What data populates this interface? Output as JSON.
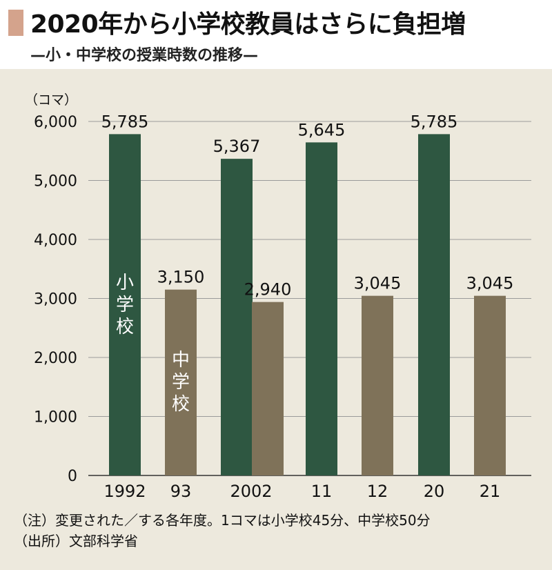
{
  "header": {
    "title": "2020年から小学校教員はさらに負担増",
    "subtitle": "—小・中学校の授業時数の推移—"
  },
  "unit_label": "（コマ）",
  "notes": {
    "note1": "（注）変更された／する各年度。1コマは小学校45分、中学校50分",
    "note2": "（出所）文部科学省"
  },
  "colors": {
    "elementary": "#2e5741",
    "junior_high": "#7f7259",
    "panel_bg": "#ede9dd",
    "title_marker": "#d4a38c"
  },
  "chart_data": {
    "type": "bar",
    "title": "",
    "xlabel": "",
    "ylabel": "（コマ）",
    "ylim": [
      0,
      6000
    ],
    "yticks": [
      0,
      1000,
      2000,
      3000,
      4000,
      5000,
      6000
    ],
    "ytick_labels": [
      "0",
      "1,000",
      "2,000",
      "3,000",
      "4,000",
      "5,000",
      "6,000"
    ],
    "grid": true,
    "categories": [
      "1992",
      "93",
      "2002",
      "11",
      "12",
      "20",
      "21"
    ],
    "bars": [
      {
        "category": "1992",
        "series": "小学校",
        "value": 5785,
        "label": "5,785"
      },
      {
        "category": "93",
        "series": "中学校",
        "value": 3150,
        "label": "3,150"
      },
      {
        "category": "2002",
        "series": "小学校",
        "value": 5367,
        "label": "5,367"
      },
      {
        "category": "2002",
        "series": "中学校",
        "value": 2940,
        "label": "2,940"
      },
      {
        "category": "11",
        "series": "小学校",
        "value": 5645,
        "label": "5,645"
      },
      {
        "category": "12",
        "series": "中学校",
        "value": 3045,
        "label": "3,045"
      },
      {
        "category": "20",
        "series": "小学校",
        "value": 5785,
        "label": "5,785"
      },
      {
        "category": "21",
        "series": "中学校",
        "value": 3045,
        "label": "3,045"
      }
    ],
    "series_labels": {
      "elementary": "小学校",
      "junior_high": "中学校"
    }
  }
}
